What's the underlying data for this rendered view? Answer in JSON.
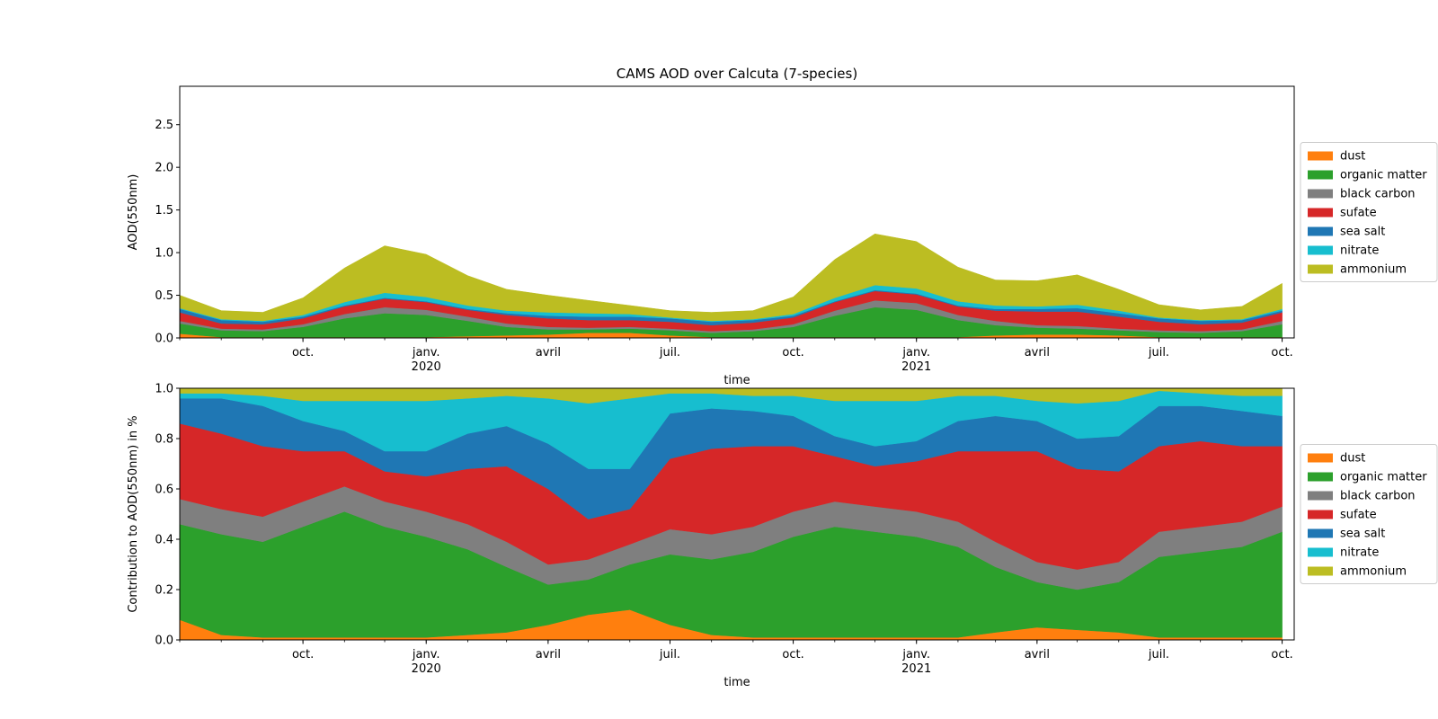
{
  "chart_data": [
    {
      "type": "area",
      "stacked": true,
      "normalized": false,
      "title": "CAMS AOD over Calcuta (7-species)",
      "xlabel": "time",
      "ylabel": "AOD(550nm)",
      "ylim": [
        0,
        2.95
      ],
      "yticks": [
        0.0,
        0.5,
        1.0,
        1.5,
        2.0,
        2.5
      ],
      "ytick_labels": [
        "0.0",
        "0.5",
        "1.0",
        "1.5",
        "2.0",
        "2.5"
      ],
      "xlim": [
        "2019-07-01",
        "2021-10-10"
      ],
      "xticks": [
        {
          "date": "2019-10-01",
          "label": "oct.",
          "sub": ""
        },
        {
          "date": "2020-01-01",
          "label": "janv.",
          "sub": "2020"
        },
        {
          "date": "2020-04-01",
          "label": "avril",
          "sub": ""
        },
        {
          "date": "2020-07-01",
          "label": "juil.",
          "sub": ""
        },
        {
          "date": "2020-10-01",
          "label": "oct.",
          "sub": ""
        },
        {
          "date": "2021-01-01",
          "label": "janv.",
          "sub": "2021"
        },
        {
          "date": "2021-04-01",
          "label": "avril",
          "sub": ""
        },
        {
          "date": "2021-07-01",
          "label": "juil.",
          "sub": ""
        },
        {
          "date": "2021-10-01",
          "label": "oct.",
          "sub": ""
        }
      ],
      "legend": "right",
      "grid": false,
      "x": [
        "2019-07-01",
        "2019-08-01",
        "2019-09-01",
        "2019-10-01",
        "2019-11-01",
        "2019-12-01",
        "2020-01-01",
        "2020-02-01",
        "2020-03-01",
        "2020-04-01",
        "2020-05-01",
        "2020-06-01",
        "2020-07-01",
        "2020-08-01",
        "2020-09-01",
        "2020-10-01",
        "2020-11-01",
        "2020-12-01",
        "2021-01-01",
        "2021-02-01",
        "2021-03-01",
        "2021-04-01",
        "2021-05-01",
        "2021-06-01",
        "2021-07-01",
        "2021-08-01",
        "2021-09-01",
        "2021-10-01"
      ],
      "series": [
        {
          "name": "dust",
          "color": "#ff7f0e",
          "values": [
            0.05,
            0.01,
            0.01,
            0.01,
            0.01,
            0.01,
            0.01,
            0.02,
            0.03,
            0.04,
            0.06,
            0.06,
            0.03,
            0.01,
            0.01,
            0.01,
            0.01,
            0.01,
            0.01,
            0.01,
            0.03,
            0.04,
            0.04,
            0.03,
            0.01,
            0.01,
            0.01,
            0.01
          ]
        },
        {
          "name": "organic matter",
          "color": "#2ca02c",
          "values": [
            0.12,
            0.08,
            0.07,
            0.12,
            0.22,
            0.28,
            0.26,
            0.18,
            0.1,
            0.06,
            0.04,
            0.05,
            0.06,
            0.05,
            0.07,
            0.12,
            0.25,
            0.35,
            0.32,
            0.2,
            0.12,
            0.08,
            0.07,
            0.06,
            0.06,
            0.05,
            0.07,
            0.15
          ]
        },
        {
          "name": "black carbon",
          "color": "#7f7f7f",
          "values": [
            0.03,
            0.02,
            0.02,
            0.03,
            0.05,
            0.07,
            0.06,
            0.05,
            0.04,
            0.03,
            0.02,
            0.02,
            0.02,
            0.02,
            0.02,
            0.03,
            0.06,
            0.08,
            0.08,
            0.06,
            0.05,
            0.03,
            0.03,
            0.02,
            0.02,
            0.02,
            0.02,
            0.04
          ]
        },
        {
          "name": "sufate",
          "color": "#d62728",
          "values": [
            0.1,
            0.06,
            0.06,
            0.07,
            0.09,
            0.1,
            0.09,
            0.08,
            0.1,
            0.1,
            0.09,
            0.08,
            0.08,
            0.07,
            0.08,
            0.08,
            0.1,
            0.11,
            0.1,
            0.1,
            0.12,
            0.16,
            0.17,
            0.14,
            0.1,
            0.08,
            0.08,
            0.1
          ]
        },
        {
          "name": "sea salt",
          "color": "#1f77b4",
          "values": [
            0.04,
            0.04,
            0.03,
            0.02,
            0.01,
            0.01,
            0.01,
            0.01,
            0.02,
            0.03,
            0.04,
            0.04,
            0.04,
            0.04,
            0.03,
            0.02,
            0.01,
            0.01,
            0.01,
            0.01,
            0.02,
            0.03,
            0.04,
            0.04,
            0.04,
            0.04,
            0.03,
            0.02
          ]
        },
        {
          "name": "nitrate",
          "color": "#17becf",
          "values": [
            0.01,
            0.01,
            0.01,
            0.02,
            0.04,
            0.06,
            0.05,
            0.04,
            0.03,
            0.04,
            0.04,
            0.03,
            0.01,
            0.01,
            0.01,
            0.02,
            0.04,
            0.06,
            0.06,
            0.05,
            0.04,
            0.03,
            0.04,
            0.03,
            0.01,
            0.01,
            0.01,
            0.02
          ]
        },
        {
          "name": "ammonium",
          "color": "#bcbd22",
          "values": [
            0.15,
            0.1,
            0.1,
            0.2,
            0.4,
            0.55,
            0.5,
            0.35,
            0.25,
            0.2,
            0.15,
            0.1,
            0.08,
            0.1,
            0.1,
            0.2,
            0.45,
            0.6,
            0.55,
            0.4,
            0.3,
            0.3,
            0.35,
            0.25,
            0.15,
            0.12,
            0.15,
            0.3
          ]
        }
      ]
    },
    {
      "type": "area",
      "stacked": true,
      "normalized": true,
      "title": "",
      "xlabel": "time",
      "ylabel": "Contribution to AOD(550nm) in %",
      "ylim": [
        0,
        1.0
      ],
      "yticks": [
        0.0,
        0.2,
        0.4,
        0.6,
        0.8,
        1.0
      ],
      "ytick_labels": [
        "0.0",
        "0.2",
        "0.4",
        "0.6",
        "0.8",
        "1.0"
      ],
      "xlim": [
        "2019-07-01",
        "2021-10-10"
      ],
      "xticks": [
        {
          "date": "2019-10-01",
          "label": "oct.",
          "sub": ""
        },
        {
          "date": "2020-01-01",
          "label": "janv.",
          "sub": "2020"
        },
        {
          "date": "2020-04-01",
          "label": "avril",
          "sub": ""
        },
        {
          "date": "2020-07-01",
          "label": "juil.",
          "sub": ""
        },
        {
          "date": "2020-10-01",
          "label": "oct.",
          "sub": ""
        },
        {
          "date": "2021-01-01",
          "label": "janv.",
          "sub": "2021"
        },
        {
          "date": "2021-04-01",
          "label": "avril",
          "sub": ""
        },
        {
          "date": "2021-07-01",
          "label": "juil.",
          "sub": ""
        },
        {
          "date": "2021-10-01",
          "label": "oct.",
          "sub": ""
        }
      ],
      "legend": "right",
      "grid": false,
      "x": [
        "2019-07-01",
        "2019-08-01",
        "2019-09-01",
        "2019-10-01",
        "2019-11-01",
        "2019-12-01",
        "2020-01-01",
        "2020-02-01",
        "2020-03-01",
        "2020-04-01",
        "2020-05-01",
        "2020-06-01",
        "2020-07-01",
        "2020-08-01",
        "2020-09-01",
        "2020-10-01",
        "2020-11-01",
        "2020-12-01",
        "2021-01-01",
        "2021-02-01",
        "2021-03-01",
        "2021-04-01",
        "2021-05-01",
        "2021-06-01",
        "2021-07-01",
        "2021-08-01",
        "2021-09-01",
        "2021-10-01"
      ],
      "series": [
        {
          "name": "dust",
          "color": "#ff7f0e",
          "values": [
            0.08,
            0.02,
            0.01,
            0.01,
            0.01,
            0.01,
            0.01,
            0.02,
            0.03,
            0.06,
            0.1,
            0.12,
            0.06,
            0.02,
            0.01,
            0.01,
            0.01,
            0.01,
            0.01,
            0.01,
            0.03,
            0.05,
            0.04,
            0.03,
            0.01,
            0.01,
            0.01,
            0.01
          ]
        },
        {
          "name": "organic matter",
          "color": "#2ca02c",
          "values": [
            0.38,
            0.4,
            0.38,
            0.44,
            0.5,
            0.44,
            0.4,
            0.34,
            0.26,
            0.16,
            0.14,
            0.18,
            0.28,
            0.3,
            0.34,
            0.4,
            0.44,
            0.42,
            0.4,
            0.36,
            0.26,
            0.18,
            0.16,
            0.2,
            0.32,
            0.34,
            0.36,
            0.42
          ]
        },
        {
          "name": "black carbon",
          "color": "#7f7f7f",
          "values": [
            0.1,
            0.1,
            0.1,
            0.1,
            0.1,
            0.1,
            0.1,
            0.1,
            0.1,
            0.08,
            0.08,
            0.08,
            0.1,
            0.1,
            0.1,
            0.1,
            0.1,
            0.1,
            0.1,
            0.1,
            0.1,
            0.08,
            0.08,
            0.08,
            0.1,
            0.1,
            0.1,
            0.1
          ]
        },
        {
          "name": "sufate",
          "color": "#d62728",
          "values": [
            0.3,
            0.3,
            0.28,
            0.2,
            0.14,
            0.12,
            0.14,
            0.22,
            0.3,
            0.3,
            0.16,
            0.14,
            0.28,
            0.34,
            0.32,
            0.26,
            0.18,
            0.16,
            0.2,
            0.28,
            0.36,
            0.44,
            0.4,
            0.36,
            0.34,
            0.34,
            0.3,
            0.24
          ]
        },
        {
          "name": "sea salt",
          "color": "#1f77b4",
          "values": [
            0.1,
            0.14,
            0.16,
            0.12,
            0.08,
            0.08,
            0.1,
            0.14,
            0.16,
            0.18,
            0.2,
            0.16,
            0.18,
            0.16,
            0.14,
            0.12,
            0.08,
            0.08,
            0.08,
            0.12,
            0.14,
            0.12,
            0.12,
            0.14,
            0.16,
            0.14,
            0.14,
            0.12
          ]
        },
        {
          "name": "nitrate",
          "color": "#17becf",
          "values": [
            0.02,
            0.02,
            0.04,
            0.08,
            0.12,
            0.2,
            0.2,
            0.14,
            0.12,
            0.18,
            0.26,
            0.28,
            0.08,
            0.06,
            0.06,
            0.08,
            0.14,
            0.18,
            0.16,
            0.1,
            0.08,
            0.08,
            0.14,
            0.14,
            0.06,
            0.05,
            0.06,
            0.08
          ]
        },
        {
          "name": "ammonium",
          "color": "#bcbd22",
          "values": [
            0.02,
            0.02,
            0.03,
            0.05,
            0.05,
            0.05,
            0.05,
            0.04,
            0.03,
            0.04,
            0.06,
            0.04,
            0.02,
            0.02,
            0.03,
            0.03,
            0.05,
            0.05,
            0.05,
            0.03,
            0.03,
            0.05,
            0.06,
            0.05,
            0.01,
            0.02,
            0.03,
            0.03
          ]
        }
      ]
    }
  ]
}
